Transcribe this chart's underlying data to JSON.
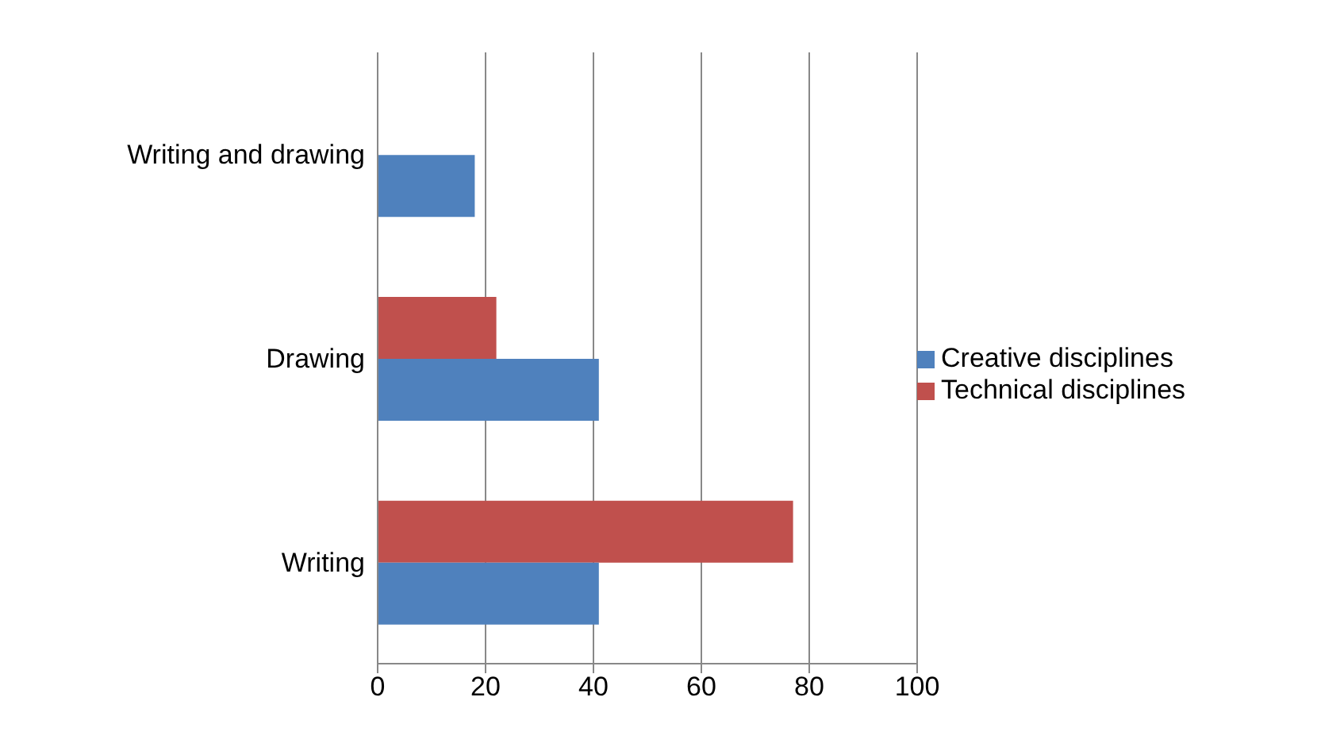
{
  "chart_data": {
    "type": "bar",
    "orientation": "horizontal",
    "categories": [
      "Writing and drawing",
      "Drawing",
      "Writing"
    ],
    "series": [
      {
        "name": "Technical disciplines",
        "color": "#c0504d",
        "values": [
          null,
          22,
          77
        ]
      },
      {
        "name": "Creative disciplines",
        "color": "#4f81bd",
        "values": [
          18,
          41,
          41
        ]
      }
    ],
    "xlim": [
      0,
      100
    ],
    "xticks": [
      0,
      20,
      40,
      60,
      80,
      100
    ],
    "grid": "x",
    "legend": "right"
  }
}
